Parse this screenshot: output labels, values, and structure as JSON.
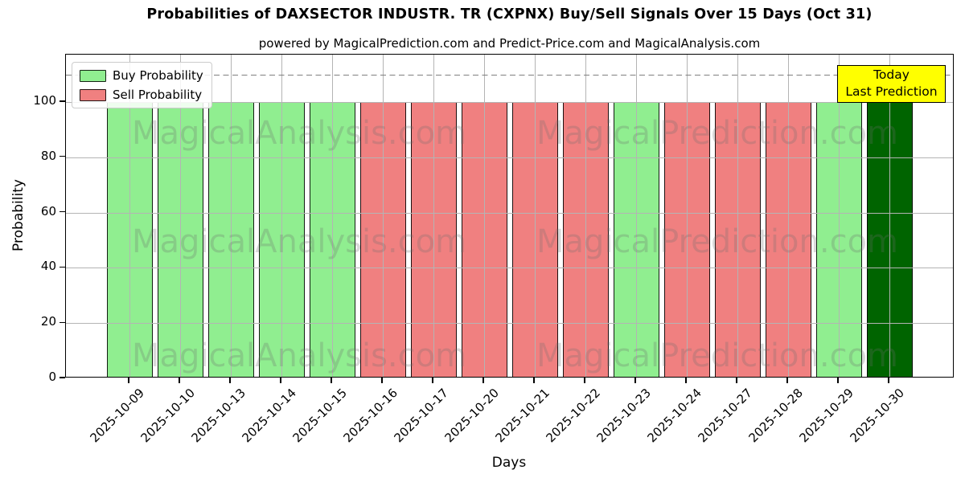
{
  "title": "Probabilities of DAXSECTOR INDUSTR. TR (CXPNX) Buy/Sell Signals Over 15 Days (Oct 31)",
  "subtitle": "powered by MagicalPrediction.com and Predict-Price.com and MagicalAnalysis.com",
  "legend": {
    "position": "upper left",
    "items": [
      {
        "label": "Buy Probability",
        "key": "buy"
      },
      {
        "label": "Sell Probability",
        "key": "sell"
      }
    ]
  },
  "annotation": {
    "line1": "Today",
    "line2": "Last Prediction",
    "bg_color": "#FFFF00"
  },
  "watermark": {
    "texts": [
      "MagicalAnalysis.com",
      "MagicalPrediction.com"
    ]
  },
  "colors": {
    "buy": "#90EE90",
    "sell": "#F08080",
    "today": "#006400",
    "grid": "#B4B4B4",
    "dashed_line": "#7F7F7F",
    "annotation_bg": "#FFFF00"
  },
  "chart_data": {
    "type": "bar",
    "title": "Probabilities of DAXSECTOR INDUSTR. TR (CXPNX) Buy/Sell Signals Over 15 Days (Oct 31)",
    "xlabel": "Days",
    "ylabel": "Probability",
    "ylim": [
      0,
      117
    ],
    "yticks": [
      0,
      20,
      40,
      60,
      80,
      100
    ],
    "grid": true,
    "dashed_threshold_y": 110,
    "legend_position": "upper left",
    "categories": [
      "2025-10-09",
      "2025-10-10",
      "2025-10-13",
      "2025-10-14",
      "2025-10-15",
      "2025-10-16",
      "2025-10-17",
      "2025-10-20",
      "2025-10-21",
      "2025-10-22",
      "2025-10-23",
      "2025-10-24",
      "2025-10-27",
      "2025-10-28",
      "2025-10-29",
      "2025-10-30"
    ],
    "series": [
      {
        "name": "Buy Probability",
        "color": "#90EE90",
        "values": [
          100,
          100,
          100,
          100,
          100,
          0,
          0,
          0,
          0,
          0,
          100,
          0,
          0,
          0,
          100,
          0
        ]
      },
      {
        "name": "Sell Probability",
        "color": "#F08080",
        "values": [
          0,
          0,
          0,
          0,
          0,
          100,
          100,
          100,
          100,
          100,
          0,
          100,
          100,
          100,
          0,
          0
        ]
      },
      {
        "name": "Today / Last Prediction",
        "color": "#006400",
        "values": [
          0,
          0,
          0,
          0,
          0,
          0,
          0,
          0,
          0,
          0,
          0,
          0,
          0,
          0,
          0,
          100
        ]
      }
    ],
    "bars": [
      {
        "date": "2025-10-09",
        "value": 100,
        "signal": "buy"
      },
      {
        "date": "2025-10-10",
        "value": 100,
        "signal": "buy"
      },
      {
        "date": "2025-10-13",
        "value": 100,
        "signal": "buy"
      },
      {
        "date": "2025-10-14",
        "value": 100,
        "signal": "buy"
      },
      {
        "date": "2025-10-15",
        "value": 100,
        "signal": "buy"
      },
      {
        "date": "2025-10-16",
        "value": 100,
        "signal": "sell"
      },
      {
        "date": "2025-10-17",
        "value": 100,
        "signal": "sell"
      },
      {
        "date": "2025-10-20",
        "value": 100,
        "signal": "sell"
      },
      {
        "date": "2025-10-21",
        "value": 100,
        "signal": "sell"
      },
      {
        "date": "2025-10-22",
        "value": 100,
        "signal": "sell"
      },
      {
        "date": "2025-10-23",
        "value": 100,
        "signal": "buy"
      },
      {
        "date": "2025-10-24",
        "value": 100,
        "signal": "sell"
      },
      {
        "date": "2025-10-27",
        "value": 100,
        "signal": "sell"
      },
      {
        "date": "2025-10-28",
        "value": 100,
        "signal": "sell"
      },
      {
        "date": "2025-10-29",
        "value": 100,
        "signal": "buy"
      },
      {
        "date": "2025-10-30",
        "value": 100,
        "signal": "today"
      }
    ]
  }
}
